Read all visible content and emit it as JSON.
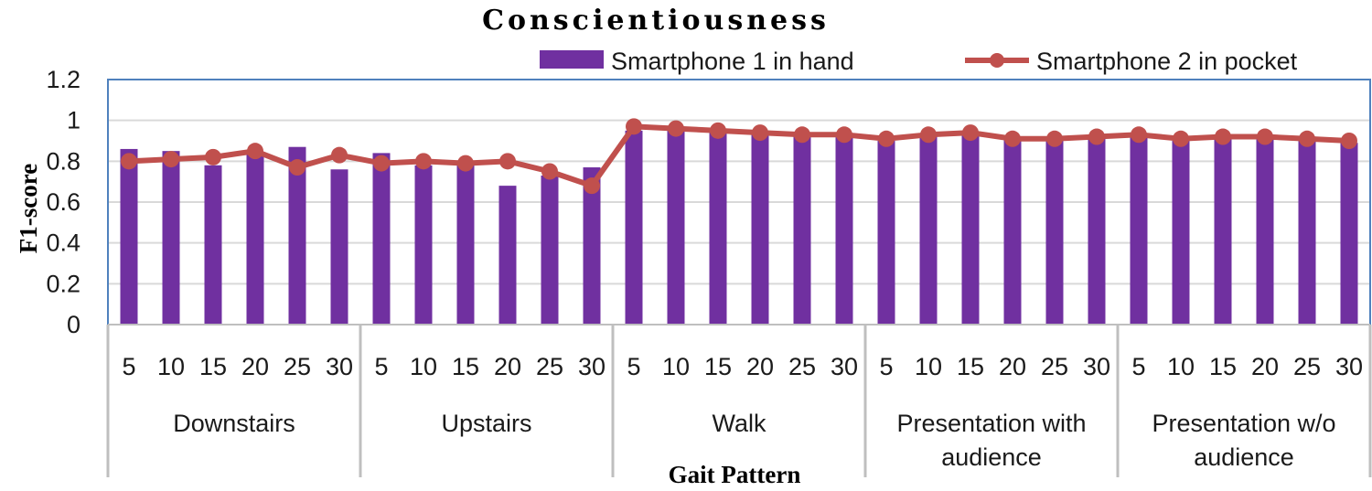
{
  "chart_data": {
    "type": "bar",
    "title": "Conscientiousness",
    "xlabel": "Gait Pattern",
    "ylabel": "F1-score",
    "ylim": [
      0,
      1.2
    ],
    "yticks": [
      "0",
      "0.2",
      "0.4",
      "0.6",
      "0.8",
      "1",
      "1.2"
    ],
    "grid": true,
    "legend_position": "top",
    "groups": [
      {
        "label": "Downstairs",
        "categories": [
          "5",
          "10",
          "15",
          "20",
          "25",
          "30"
        ]
      },
      {
        "label": "Upstairs",
        "categories": [
          "5",
          "10",
          "15",
          "20",
          "25",
          "30"
        ]
      },
      {
        "label": "Walk",
        "categories": [
          "5",
          "10",
          "15",
          "20",
          "25",
          "30"
        ]
      },
      {
        "label": "Presentation with audience",
        "categories": [
          "5",
          "10",
          "15",
          "20",
          "25",
          "30"
        ]
      },
      {
        "label": "Presentation w/o audience",
        "categories": [
          "5",
          "10",
          "15",
          "20",
          "25",
          "30"
        ]
      }
    ],
    "series": [
      {
        "name": "Smartphone 1 in hand",
        "kind": "bar",
        "color": "#7030a0",
        "values": [
          0.86,
          0.85,
          0.78,
          0.84,
          0.87,
          0.76,
          0.84,
          0.78,
          0.79,
          0.68,
          0.73,
          0.77,
          0.95,
          0.95,
          0.94,
          0.93,
          0.92,
          0.92,
          0.9,
          0.92,
          0.93,
          0.91,
          0.91,
          0.92,
          0.92,
          0.9,
          0.91,
          0.92,
          0.9,
          0.89
        ]
      },
      {
        "name": "Smartphone 2 in pocket",
        "kind": "line",
        "color": "#c0504d",
        "values": [
          0.8,
          0.81,
          0.82,
          0.85,
          0.77,
          0.83,
          0.79,
          0.8,
          0.79,
          0.8,
          0.75,
          0.68,
          0.97,
          0.96,
          0.95,
          0.94,
          0.93,
          0.93,
          0.91,
          0.93,
          0.94,
          0.91,
          0.91,
          0.92,
          0.93,
          0.91,
          0.92,
          0.92,
          0.91,
          0.9
        ]
      }
    ]
  }
}
